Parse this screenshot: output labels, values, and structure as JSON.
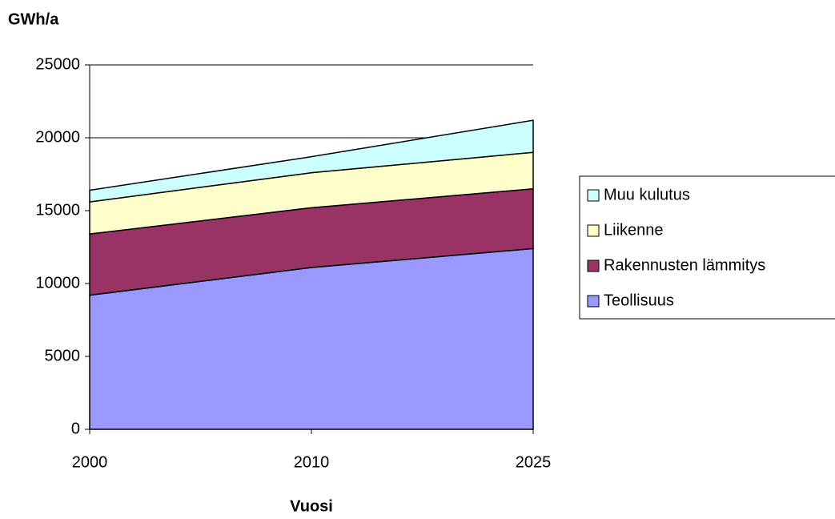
{
  "chart_data": {
    "type": "stacked_area",
    "y_label": "GWh/a",
    "x_label": "Vuosi",
    "categories": [
      "2000",
      "2010",
      "2025"
    ],
    "series": [
      {
        "name": "Teollisuus",
        "color": "#9999ff",
        "values": [
          9200,
          11100,
          12400
        ]
      },
      {
        "name": "Rakennusten lämmitys",
        "color": "#993366",
        "values": [
          4200,
          4100,
          4100
        ]
      },
      {
        "name": "Liikenne",
        "color": "#ffffcc",
        "values": [
          2200,
          2400,
          2500
        ]
      },
      {
        "name": "Muu kulutus",
        "color": "#ccffff",
        "values": [
          800,
          1100,
          2200
        ]
      }
    ],
    "ylim": [
      0,
      25000
    ],
    "yticks": [
      0,
      5000,
      10000,
      15000,
      20000,
      25000
    ],
    "grid": true,
    "legend": "right"
  }
}
